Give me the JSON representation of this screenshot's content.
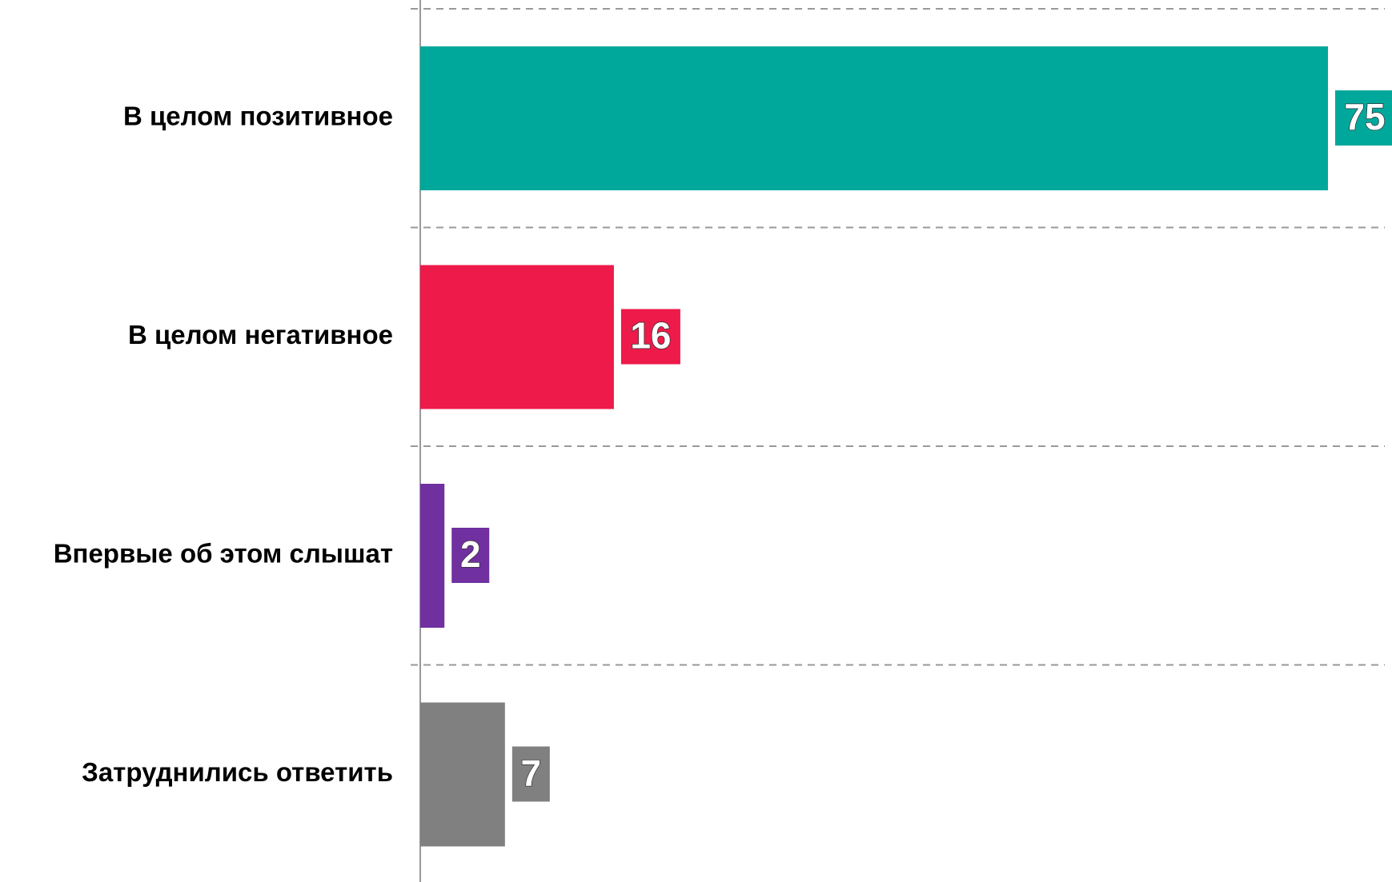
{
  "chart_data": {
    "type": "bar",
    "orientation": "horizontal",
    "categories": [
      "В целом позитивное",
      "В целом негативное",
      "Впервые об этом слышат",
      "Затруднились ответить"
    ],
    "values": [
      75,
      16,
      2,
      7
    ],
    "colors": [
      "#00a89c",
      "#ed1a4a",
      "#7030a0",
      "#808080"
    ]
  }
}
